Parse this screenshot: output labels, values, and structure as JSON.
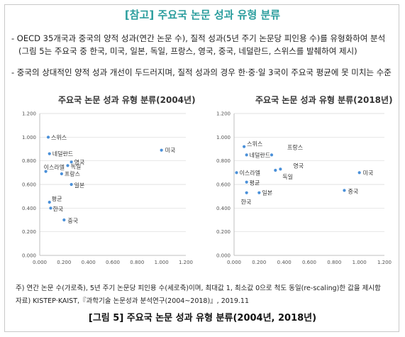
{
  "header": {
    "title": "[참고] 주요국 논문 성과 유형 분류"
  },
  "bullets": {
    "b1_line1": "- OECD 35개국과 중국의 양적 성과(연간 논문 수), 질적 성과(5년 주기 논문당 피인용 수)를 유형화하여 분석",
    "b1_line2": "(그림 5는 주요국 중 한국, 미국, 일본, 독일, 프랑스, 영국, 중국, 네덜란드, 스위스를 발췌하여 제시)",
    "b2": "- 중국의 상대적인 양적 성과 개선이 두드러지며, 질적 성과의 경우 한·중·일 3국이 주요국 평균에 못 미치는 수준"
  },
  "notes": {
    "line1": "주) 연간 논문 수(가로축), 5년 주기 논문당 피인용 수(세로축)이며, 최대값 1, 최소값 0으로 척도 동일(re-scaling)한 값을 제시함",
    "line2": "자료) KISTEP·KAIST,『과학기술 논문성과 분석연구(2004~2018)』, 2019.11"
  },
  "figure": {
    "caption": "[그림 5] 주요국 논문 성과 유형 분류(2004년, 2018년)"
  },
  "colors": {
    "title": "#2a9d9d",
    "point": "#4a90d9",
    "grid": "#d9d9d9",
    "axis": "#bfbfbf"
  },
  "chart_data": [
    {
      "type": "scatter",
      "title": "주요국 논문 성과 유형 분류(2004년)",
      "xlabel": "",
      "ylabel": "",
      "xlim": [
        0,
        1.2
      ],
      "ylim": [
        0,
        1.2
      ],
      "x_ticks": [
        "0.000",
        "0.200",
        "0.400",
        "0.600",
        "0.800",
        "1.000",
        "1.200"
      ],
      "y_ticks": [
        "0.000",
        "0.200",
        "0.400",
        "0.600",
        "0.800",
        "1.000",
        "1.200"
      ],
      "grid": true,
      "legend": "none",
      "points": [
        {
          "label": "스위스",
          "x": 0.07,
          "y": 1.0
        },
        {
          "label": "미국",
          "x": 1.0,
          "y": 0.89
        },
        {
          "label": "네덜란드",
          "x": 0.08,
          "y": 0.86
        },
        {
          "label": "영국",
          "x": 0.26,
          "y": 0.79
        },
        {
          "label": "독일",
          "x": 0.23,
          "y": 0.76
        },
        {
          "label": "이스라엘",
          "x": 0.05,
          "y": 0.71
        },
        {
          "label": "프랑스",
          "x": 0.18,
          "y": 0.69
        },
        {
          "label": "일본",
          "x": 0.26,
          "y": 0.6
        },
        {
          "label": "평균",
          "x": 0.08,
          "y": 0.45
        },
        {
          "label": "한국",
          "x": 0.09,
          "y": 0.4
        },
        {
          "label": "중국",
          "x": 0.2,
          "y": 0.3
        }
      ]
    },
    {
      "type": "scatter",
      "title": "주요국 논문 성과 유형 분류(2018년)",
      "xlabel": "",
      "ylabel": "",
      "xlim": [
        0,
        1.2
      ],
      "ylim": [
        0,
        1.2
      ],
      "x_ticks": [
        "0.000",
        "0.200",
        "0.400",
        "0.600",
        "0.800",
        "1.000",
        "1.200"
      ],
      "y_ticks": [
        "0.000",
        "0.200",
        "0.400",
        "0.600",
        "0.800",
        "1.000",
        "1.200"
      ],
      "grid": true,
      "legend": "none",
      "points": [
        {
          "label": "스위스",
          "x": 0.08,
          "y": 0.92
        },
        {
          "label": "네덜란드",
          "x": 0.1,
          "y": 0.85
        },
        {
          "label": "프랑스",
          "x": 0.3,
          "y": 0.85
        },
        {
          "label": "영국",
          "x": 0.37,
          "y": 0.73
        },
        {
          "label": "이스라엘",
          "x": 0.02,
          "y": 0.7
        },
        {
          "label": "독일",
          "x": 0.33,
          "y": 0.72
        },
        {
          "label": "미국",
          "x": 1.0,
          "y": 0.7
        },
        {
          "label": "평균",
          "x": 0.1,
          "y": 0.62
        },
        {
          "label": "중국",
          "x": 0.88,
          "y": 0.55
        },
        {
          "label": "한국",
          "x": 0.1,
          "y": 0.53
        },
        {
          "label": "일본",
          "x": 0.2,
          "y": 0.53
        }
      ]
    }
  ]
}
